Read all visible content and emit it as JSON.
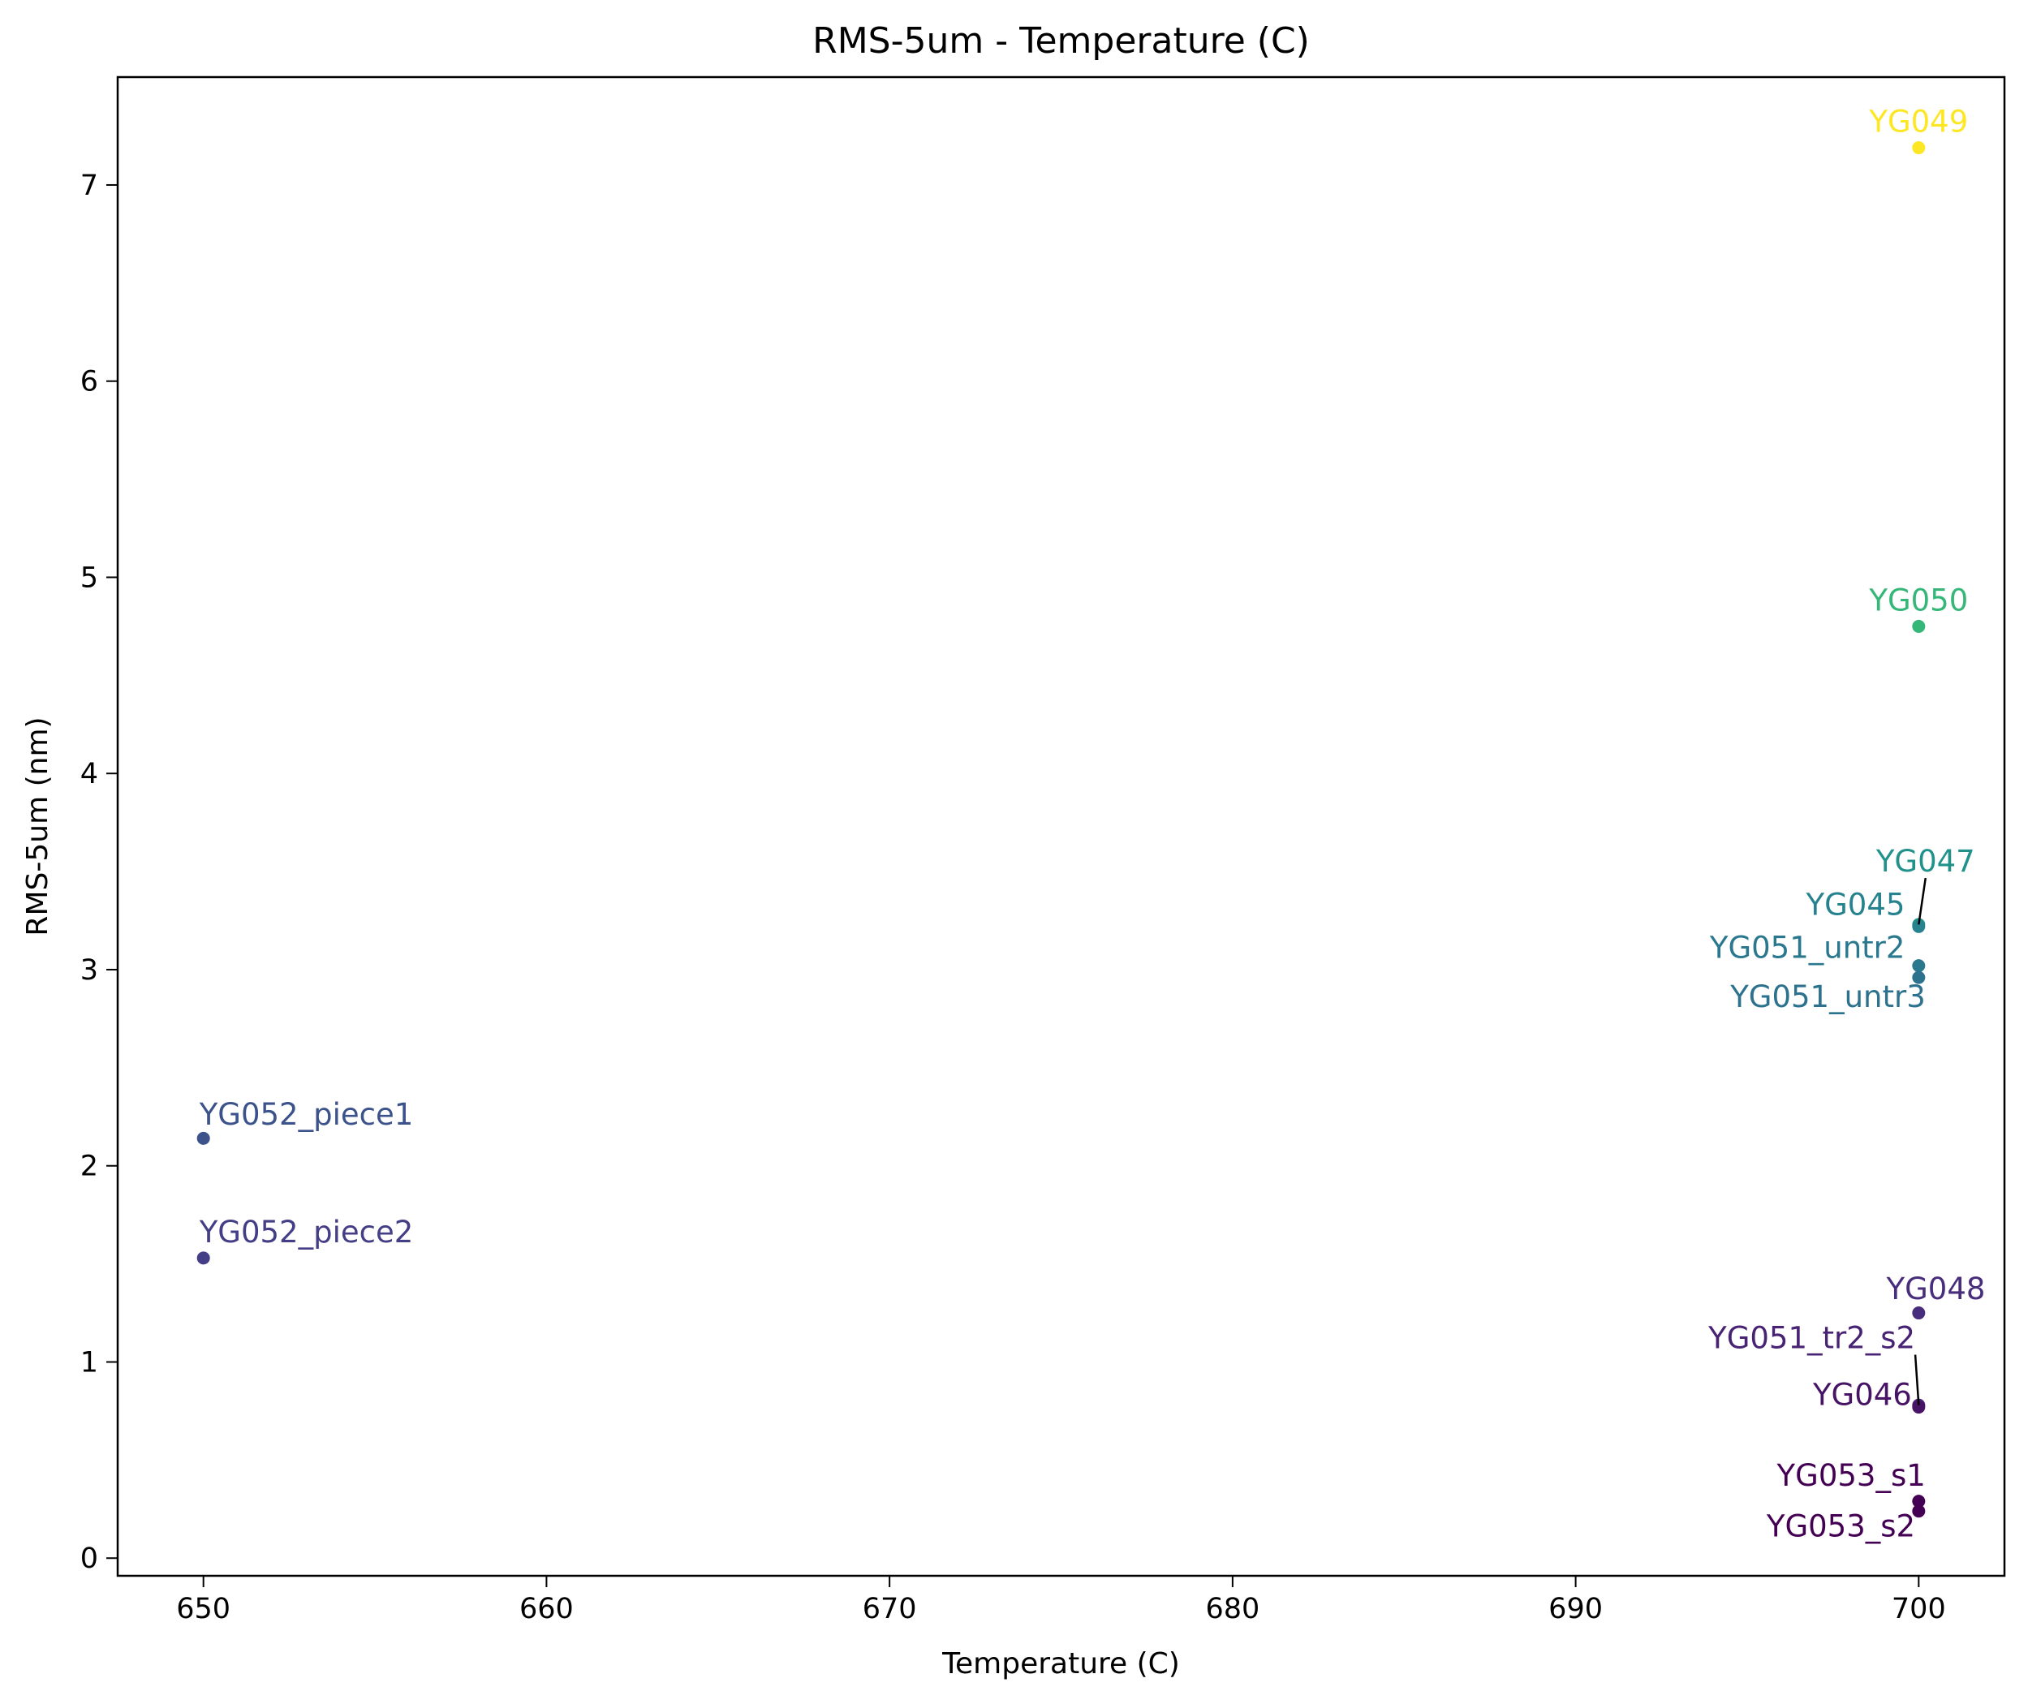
{
  "chart_data": {
    "type": "scatter",
    "title": "RMS-5um - Temperature (C)",
    "xlabel": "Temperature (C)",
    "ylabel": "RMS-5um (nm)",
    "xlim": [
      647.5,
      702.5
    ],
    "ylim": [
      -0.09,
      7.55
    ],
    "xticks": [
      650,
      660,
      670,
      680,
      690,
      700
    ],
    "yticks": [
      0,
      1,
      2,
      3,
      4,
      5,
      6,
      7
    ],
    "grid": false,
    "legend": "none",
    "points": [
      {
        "label": "YG049",
        "x": 700,
        "y": 7.19,
        "color": "#fde725"
      },
      {
        "label": "YG050",
        "x": 700,
        "y": 4.75,
        "color": "#35b779"
      },
      {
        "label": "YG047",
        "x": 700,
        "y": 3.23,
        "color": "#21918c"
      },
      {
        "label": "YG045",
        "x": 700,
        "y": 3.22,
        "color": "#26828e"
      },
      {
        "label": "YG051_untr2",
        "x": 700,
        "y": 3.02,
        "color": "#2a788e"
      },
      {
        "label": "YG051_untr3",
        "x": 700,
        "y": 2.96,
        "color": "#2c728e"
      },
      {
        "label": "YG052_piece1",
        "x": 650,
        "y": 2.14,
        "color": "#3b528b"
      },
      {
        "label": "YG052_piece2",
        "x": 650,
        "y": 1.53,
        "color": "#433e85"
      },
      {
        "label": "YG048",
        "x": 700,
        "y": 1.25,
        "color": "#472d7b"
      },
      {
        "label": "YG051_tr2_s2",
        "x": 700,
        "y": 0.78,
        "color": "#482374"
      },
      {
        "label": "YG046",
        "x": 700,
        "y": 0.77,
        "color": "#471365"
      },
      {
        "label": "YG053_s1",
        "x": 700,
        "y": 0.29,
        "color": "#440154"
      },
      {
        "label": "YG053_s2",
        "x": 700,
        "y": 0.24,
        "color": "#440154"
      }
    ],
    "annotations": [
      {
        "label": "YG049",
        "text_x": 700,
        "text_y": 7.27,
        "anchor": "middle",
        "leader": false
      },
      {
        "label": "YG050",
        "text_x": 700,
        "text_y": 4.83,
        "anchor": "middle",
        "leader": false
      },
      {
        "label": "YG047",
        "text_x": 700.2,
        "text_y": 3.5,
        "anchor": "middle",
        "leader": true
      },
      {
        "label": "YG045",
        "text_x": 699.6,
        "text_y": 3.28,
        "anchor": "end",
        "leader": false
      },
      {
        "label": "YG051_untr2",
        "text_x": 699.6,
        "text_y": 3.06,
        "anchor": "end",
        "leader": false
      },
      {
        "label": "YG051_untr3",
        "text_x": 700.2,
        "text_y": 2.81,
        "anchor": "end",
        "leader": false
      },
      {
        "label": "YG052_piece1",
        "text_x": 653.0,
        "text_y": 2.21,
        "anchor": "middle",
        "leader": false
      },
      {
        "label": "YG052_piece2",
        "text_x": 653.0,
        "text_y": 1.61,
        "anchor": "middle",
        "leader": false
      },
      {
        "label": "YG048",
        "text_x": 700.5,
        "text_y": 1.32,
        "anchor": "middle",
        "leader": false
      },
      {
        "label": "YG051_tr2_s2",
        "text_x": 699.9,
        "text_y": 1.07,
        "anchor": "end",
        "leader": true
      },
      {
        "label": "YG046",
        "text_x": 699.8,
        "text_y": 0.78,
        "anchor": "end",
        "leader": false
      },
      {
        "label": "YG053_s1",
        "text_x": 700.2,
        "text_y": 0.37,
        "anchor": "end",
        "leader": false
      },
      {
        "label": "YG053_s2",
        "text_x": 699.9,
        "text_y": 0.11,
        "anchor": "end",
        "leader": false
      }
    ]
  }
}
